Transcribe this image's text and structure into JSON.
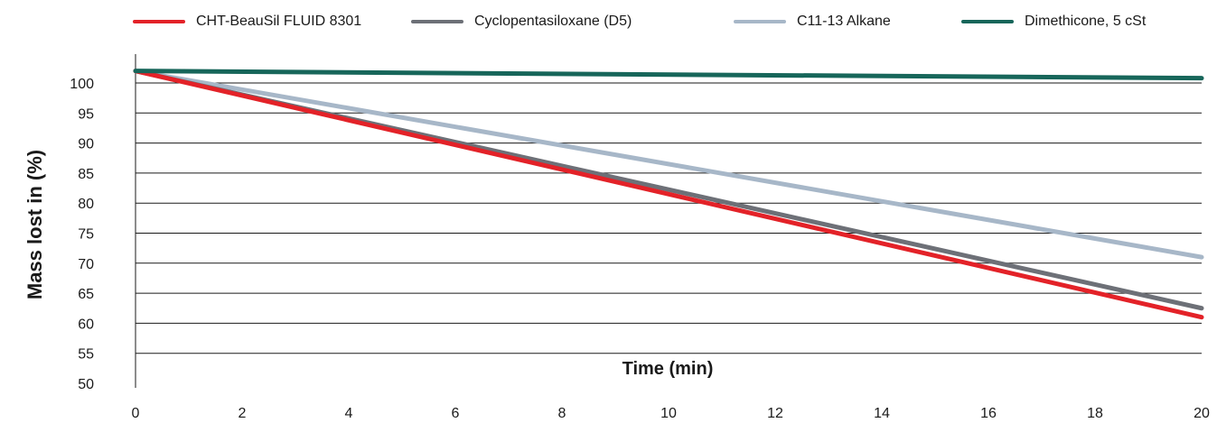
{
  "chart_data": {
    "type": "line",
    "title": "",
    "xlabel": "Time (min)",
    "ylabel": "Mass lost in (%)",
    "x_ticks": [
      0,
      2,
      4,
      6,
      8,
      10,
      12,
      14,
      16,
      18,
      20
    ],
    "y_ticks": [
      100,
      95,
      90,
      85,
      80,
      75,
      70,
      65,
      60,
      55,
      50
    ],
    "xlim": [
      0,
      20
    ],
    "ylim": [
      50,
      100
    ],
    "grid": "horizontal",
    "legend_position": "top",
    "series": [
      {
        "name": "CHT-BeauSil FLUID 8301",
        "color": "#e32228",
        "x": [
          0,
          20
        ],
        "y": [
          102,
          61
        ]
      },
      {
        "name": "Cyclopentasiloxane (D5)",
        "color": "#6d7077",
        "x": [
          0,
          20
        ],
        "y": [
          102,
          62.5
        ]
      },
      {
        "name": "C11-13 Alkane",
        "color": "#a7b7c8",
        "x": [
          0,
          20
        ],
        "y": [
          102,
          71
        ]
      },
      {
        "name": "Dimethicone, 5 cSt",
        "color": "#17665a",
        "x": [
          0,
          20
        ],
        "y": [
          102,
          100.8
        ]
      }
    ]
  }
}
